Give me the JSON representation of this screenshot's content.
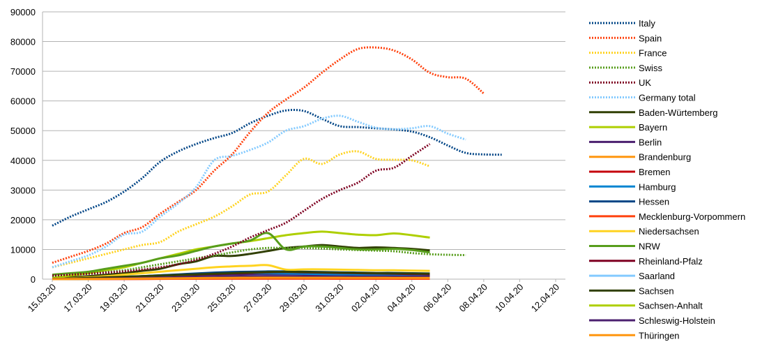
{
  "chart_data": {
    "type": "line",
    "title": "",
    "xlabel": "",
    "ylabel": "",
    "ylim": [
      0,
      90000
    ],
    "yticks": [
      0,
      10000,
      20000,
      30000,
      40000,
      50000,
      60000,
      70000,
      80000,
      90000
    ],
    "xtick_labels": [
      "15.03.20",
      "17.03.20",
      "19.03.20",
      "21.03.20",
      "23.03.20",
      "25.03.20",
      "27.03.20",
      "29.03.20",
      "31.03.20",
      "02.04.20",
      "04.04.20",
      "06.04.20",
      "08.04.20",
      "10.04.20",
      "12.04.20"
    ],
    "x": [
      "15.03.20",
      "16.03.20",
      "17.03.20",
      "18.03.20",
      "19.03.20",
      "20.03.20",
      "21.03.20",
      "22.03.20",
      "23.03.20",
      "24.03.20",
      "25.03.20",
      "26.03.20",
      "27.03.20",
      "28.03.20",
      "29.03.20",
      "30.03.20",
      "31.03.20",
      "01.04.20",
      "02.04.20",
      "03.04.20",
      "04.04.20",
      "05.04.20",
      "06.04.20",
      "07.04.20",
      "08.04.20",
      "09.04.20",
      "10.04.20",
      "11.04.20",
      "12.04.20"
    ],
    "grid": true,
    "legend_position": "right",
    "series": [
      {
        "name": "Italy",
        "color": "#004586",
        "dash": "dotted",
        "values": [
          18000,
          21000,
          23500,
          26000,
          29500,
          34000,
          39500,
          43000,
          45500,
          47500,
          49200,
          52500,
          55000,
          56800,
          56600,
          54000,
          51500,
          51200,
          50800,
          50400,
          49700,
          47800,
          45000,
          42500,
          42000,
          41900,
          null,
          null,
          null
        ]
      },
      {
        "name": "Spain",
        "color": "#ff420e",
        "dash": "dotted",
        "values": [
          5500,
          7500,
          9500,
          12000,
          15500,
          17500,
          22000,
          26000,
          30000,
          36500,
          42000,
          49500,
          56000,
          60500,
          64500,
          69500,
          74000,
          77500,
          78000,
          77000,
          74000,
          69500,
          68000,
          67500,
          62500,
          null,
          null,
          null,
          null
        ]
      },
      {
        "name": "France",
        "color": "#ffd320",
        "dash": "dotted",
        "values": [
          4000,
          5500,
          7000,
          8500,
          10000,
          11500,
          12500,
          16000,
          18500,
          21000,
          24500,
          28500,
          29500,
          35000,
          40500,
          38800,
          42000,
          43000,
          40500,
          40200,
          40000,
          38000,
          null,
          null,
          null,
          null,
          null,
          null,
          null
        ]
      },
      {
        "name": "Swiss",
        "color": "#579d1c",
        "dash": "dotted",
        "values": [
          1000,
          1500,
          2000,
          2500,
          3000,
          4000,
          5000,
          6000,
          7000,
          8000,
          9000,
          10000,
          10500,
          10500,
          10500,
          10300,
          10000,
          9800,
          9600,
          9400,
          8800,
          8400,
          8200,
          8100,
          null,
          null,
          null,
          null,
          null
        ]
      },
      {
        "name": "UK",
        "color": "#7e0021",
        "dash": "dotted",
        "values": [
          1200,
          1500,
          1800,
          2200,
          2600,
          3200,
          4000,
          5000,
          6500,
          8500,
          11000,
          14000,
          16500,
          19000,
          23000,
          27000,
          30000,
          32500,
          36500,
          37500,
          41500,
          45500,
          null,
          null,
          null,
          null,
          null,
          null,
          null
        ]
      },
      {
        "name": "Germany total",
        "color": "#83caff",
        "dash": "dotted",
        "values": [
          4000,
          6000,
          8000,
          11000,
          15000,
          16000,
          21000,
          25500,
          31000,
          40000,
          41500,
          43500,
          46000,
          50000,
          51500,
          54000,
          55000,
          53000,
          51000,
          50500,
          50800,
          51500,
          49000,
          47000,
          null,
          null,
          null,
          null,
          null
        ]
      },
      {
        "name": "Baden-Würtemberg",
        "color": "#314004",
        "dash": "solid",
        "values": [
          200,
          600,
          1000,
          1500,
          2000,
          2800,
          3500,
          5000,
          6000,
          7800,
          7800,
          8500,
          9500,
          10500,
          11000,
          11500,
          11000,
          10500,
          10700,
          10500,
          10200,
          9700,
          null,
          null,
          null,
          null,
          null,
          null,
          null
        ]
      },
      {
        "name": "Bayern",
        "color": "#aecf00",
        "dash": "solid",
        "values": [
          500,
          1200,
          2000,
          3000,
          4000,
          5500,
          7000,
          8500,
          10000,
          11000,
          12000,
          12800,
          13800,
          14800,
          15500,
          16000,
          15500,
          15000,
          14800,
          15400,
          14800,
          14000,
          null,
          null,
          null,
          null,
          null,
          null,
          null
        ]
      },
      {
        "name": "Berlin",
        "color": "#4b1f6f",
        "dash": "solid",
        "values": [
          50,
          100,
          200,
          300,
          400,
          500,
          700,
          900,
          1100,
          1300,
          1500,
          1600,
          1700,
          1700,
          1650,
          1600,
          1550,
          1500,
          1500,
          1500,
          1450,
          1400,
          null,
          null,
          null,
          null,
          null,
          null,
          null
        ]
      },
      {
        "name": "Brandenburg",
        "color": "#ff950e",
        "dash": "solid",
        "values": [
          10,
          30,
          60,
          100,
          150,
          200,
          250,
          300,
          350,
          400,
          420,
          430,
          440,
          440,
          430,
          420,
          410,
          400,
          400,
          390,
          380,
          370,
          null,
          null,
          null,
          null,
          null,
          null,
          null
        ]
      },
      {
        "name": "Bremen",
        "color": "#c5000b",
        "dash": "solid",
        "values": [
          10,
          20,
          40,
          60,
          80,
          100,
          120,
          140,
          160,
          170,
          180,
          190,
          190,
          180,
          170,
          160,
          150,
          140,
          140,
          130,
          130,
          120,
          null,
          null,
          null,
          null,
          null,
          null,
          null
        ]
      },
      {
        "name": "Hamburg",
        "color": "#0084d1",
        "dash": "solid",
        "values": [
          50,
          150,
          300,
          500,
          800,
          1000,
          1300,
          1500,
          1800,
          2000,
          2100,
          2100,
          2000,
          1900,
          1800,
          1700,
          1600,
          1500,
          1450,
          1400,
          1350,
          1300,
          null,
          null,
          null,
          null,
          null,
          null,
          null
        ]
      },
      {
        "name": "Hessen",
        "color": "#004586",
        "dash": "solid",
        "values": [
          50,
          150,
          300,
          500,
          700,
          1000,
          1300,
          1600,
          1900,
          2200,
          2400,
          2500,
          2600,
          2600,
          2500,
          2400,
          2300,
          2200,
          2100,
          2100,
          2000,
          1900,
          null,
          null,
          null,
          null,
          null,
          null,
          null
        ]
      },
      {
        "name": "Mecklenburg-Vorpommern",
        "color": "#ff420e",
        "dash": "solid",
        "values": [
          5,
          10,
          20,
          40,
          60,
          80,
          100,
          120,
          140,
          150,
          160,
          170,
          170,
          165,
          160,
          155,
          150,
          145,
          140,
          135,
          130,
          125,
          null,
          null,
          null,
          null,
          null,
          null,
          null
        ]
      },
      {
        "name": "Niedersachsen",
        "color": "#ffd320",
        "dash": "solid",
        "values": [
          100,
          300,
          600,
          1000,
          1500,
          2000,
          2500,
          3000,
          3500,
          4000,
          4300,
          4500,
          4700,
          3200,
          3300,
          3300,
          3200,
          3100,
          3000,
          3000,
          2900,
          2800,
          null,
          null,
          null,
          null,
          null,
          null,
          null
        ]
      },
      {
        "name": "NRW",
        "color": "#579d1c",
        "dash": "solid",
        "values": [
          1500,
          2000,
          2500,
          3500,
          4500,
          5500,
          7000,
          8000,
          9500,
          11000,
          12000,
          13000,
          15500,
          10000,
          11000,
          11000,
          10500,
          10000,
          10000,
          10200,
          9800,
          9000,
          null,
          null,
          null,
          null,
          null,
          null,
          null
        ]
      },
      {
        "name": "Rheinland-Pfalz",
        "color": "#7e0021",
        "dash": "solid",
        "values": [
          50,
          150,
          300,
          500,
          700,
          900,
          1100,
          1300,
          1500,
          1700,
          1900,
          2100,
          2300,
          2400,
          2300,
          2200,
          2100,
          2000,
          1900,
          1800,
          1700,
          1600,
          null,
          null,
          null,
          null,
          null,
          null,
          null
        ]
      },
      {
        "name": "Saarland",
        "color": "#83caff",
        "dash": "solid",
        "values": [
          10,
          50,
          100,
          200,
          300,
          400,
          500,
          600,
          700,
          800,
          900,
          1000,
          1050,
          1000,
          950,
          900,
          850,
          800,
          780,
          760,
          740,
          720,
          null,
          null,
          null,
          null,
          null,
          null,
          null
        ]
      },
      {
        "name": "Sachsen",
        "color": "#314004",
        "dash": "solid",
        "values": [
          100,
          200,
          400,
          600,
          800,
          1000,
          1200,
          1400,
          1600,
          1800,
          2000,
          2200,
          2400,
          2500,
          2400,
          2300,
          2200,
          2100,
          2000,
          1950,
          1900,
          1850,
          null,
          null,
          null,
          null,
          null,
          null,
          null
        ]
      },
      {
        "name": "Sachsen-Anhalt",
        "color": "#aecf00",
        "dash": "solid",
        "values": [
          20,
          50,
          100,
          150,
          200,
          300,
          400,
          500,
          600,
          700,
          800,
          850,
          900,
          880,
          860,
          840,
          820,
          800,
          780,
          760,
          740,
          720,
          null,
          null,
          null,
          null,
          null,
          null,
          null
        ]
      },
      {
        "name": "Schleswig-Holstein",
        "color": "#4b1f6f",
        "dash": "solid",
        "values": [
          20,
          60,
          120,
          200,
          300,
          400,
          500,
          600,
          700,
          800,
          900,
          950,
          1000,
          980,
          960,
          940,
          920,
          900,
          880,
          860,
          840,
          820,
          null,
          null,
          null,
          null,
          null,
          null,
          null
        ]
      },
      {
        "name": "Thüringen",
        "color": "#ff950e",
        "dash": "solid",
        "values": [
          10,
          30,
          60,
          100,
          150,
          200,
          250,
          300,
          350,
          400,
          450,
          480,
          500,
          490,
          480,
          470,
          460,
          450,
          440,
          430,
          420,
          410,
          null,
          null,
          null,
          null,
          null,
          null,
          null
        ]
      }
    ]
  }
}
